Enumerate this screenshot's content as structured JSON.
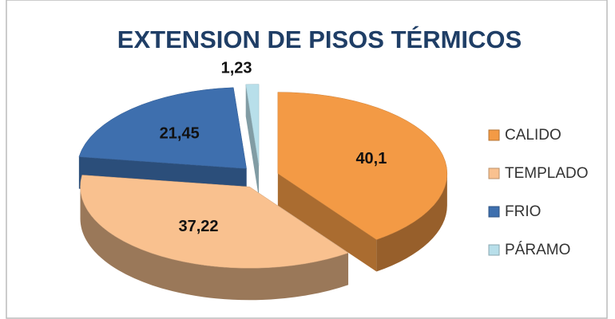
{
  "chart_data": {
    "type": "pie3d",
    "title": "EXTENSION DE PISOS TÉRMICOS",
    "categories": [
      "CALIDO",
      "TEMPLADO",
      "FRIO",
      "PÁRAMO"
    ],
    "values": [
      40.1,
      37.22,
      21.45,
      1.23
    ],
    "value_labels": [
      "40,1",
      "37,22",
      "21,45",
      "1,23"
    ],
    "colors": [
      "#f39a45",
      "#f9c18f",
      "#3e6fae",
      "#b8dfea"
    ],
    "legend": "right"
  }
}
